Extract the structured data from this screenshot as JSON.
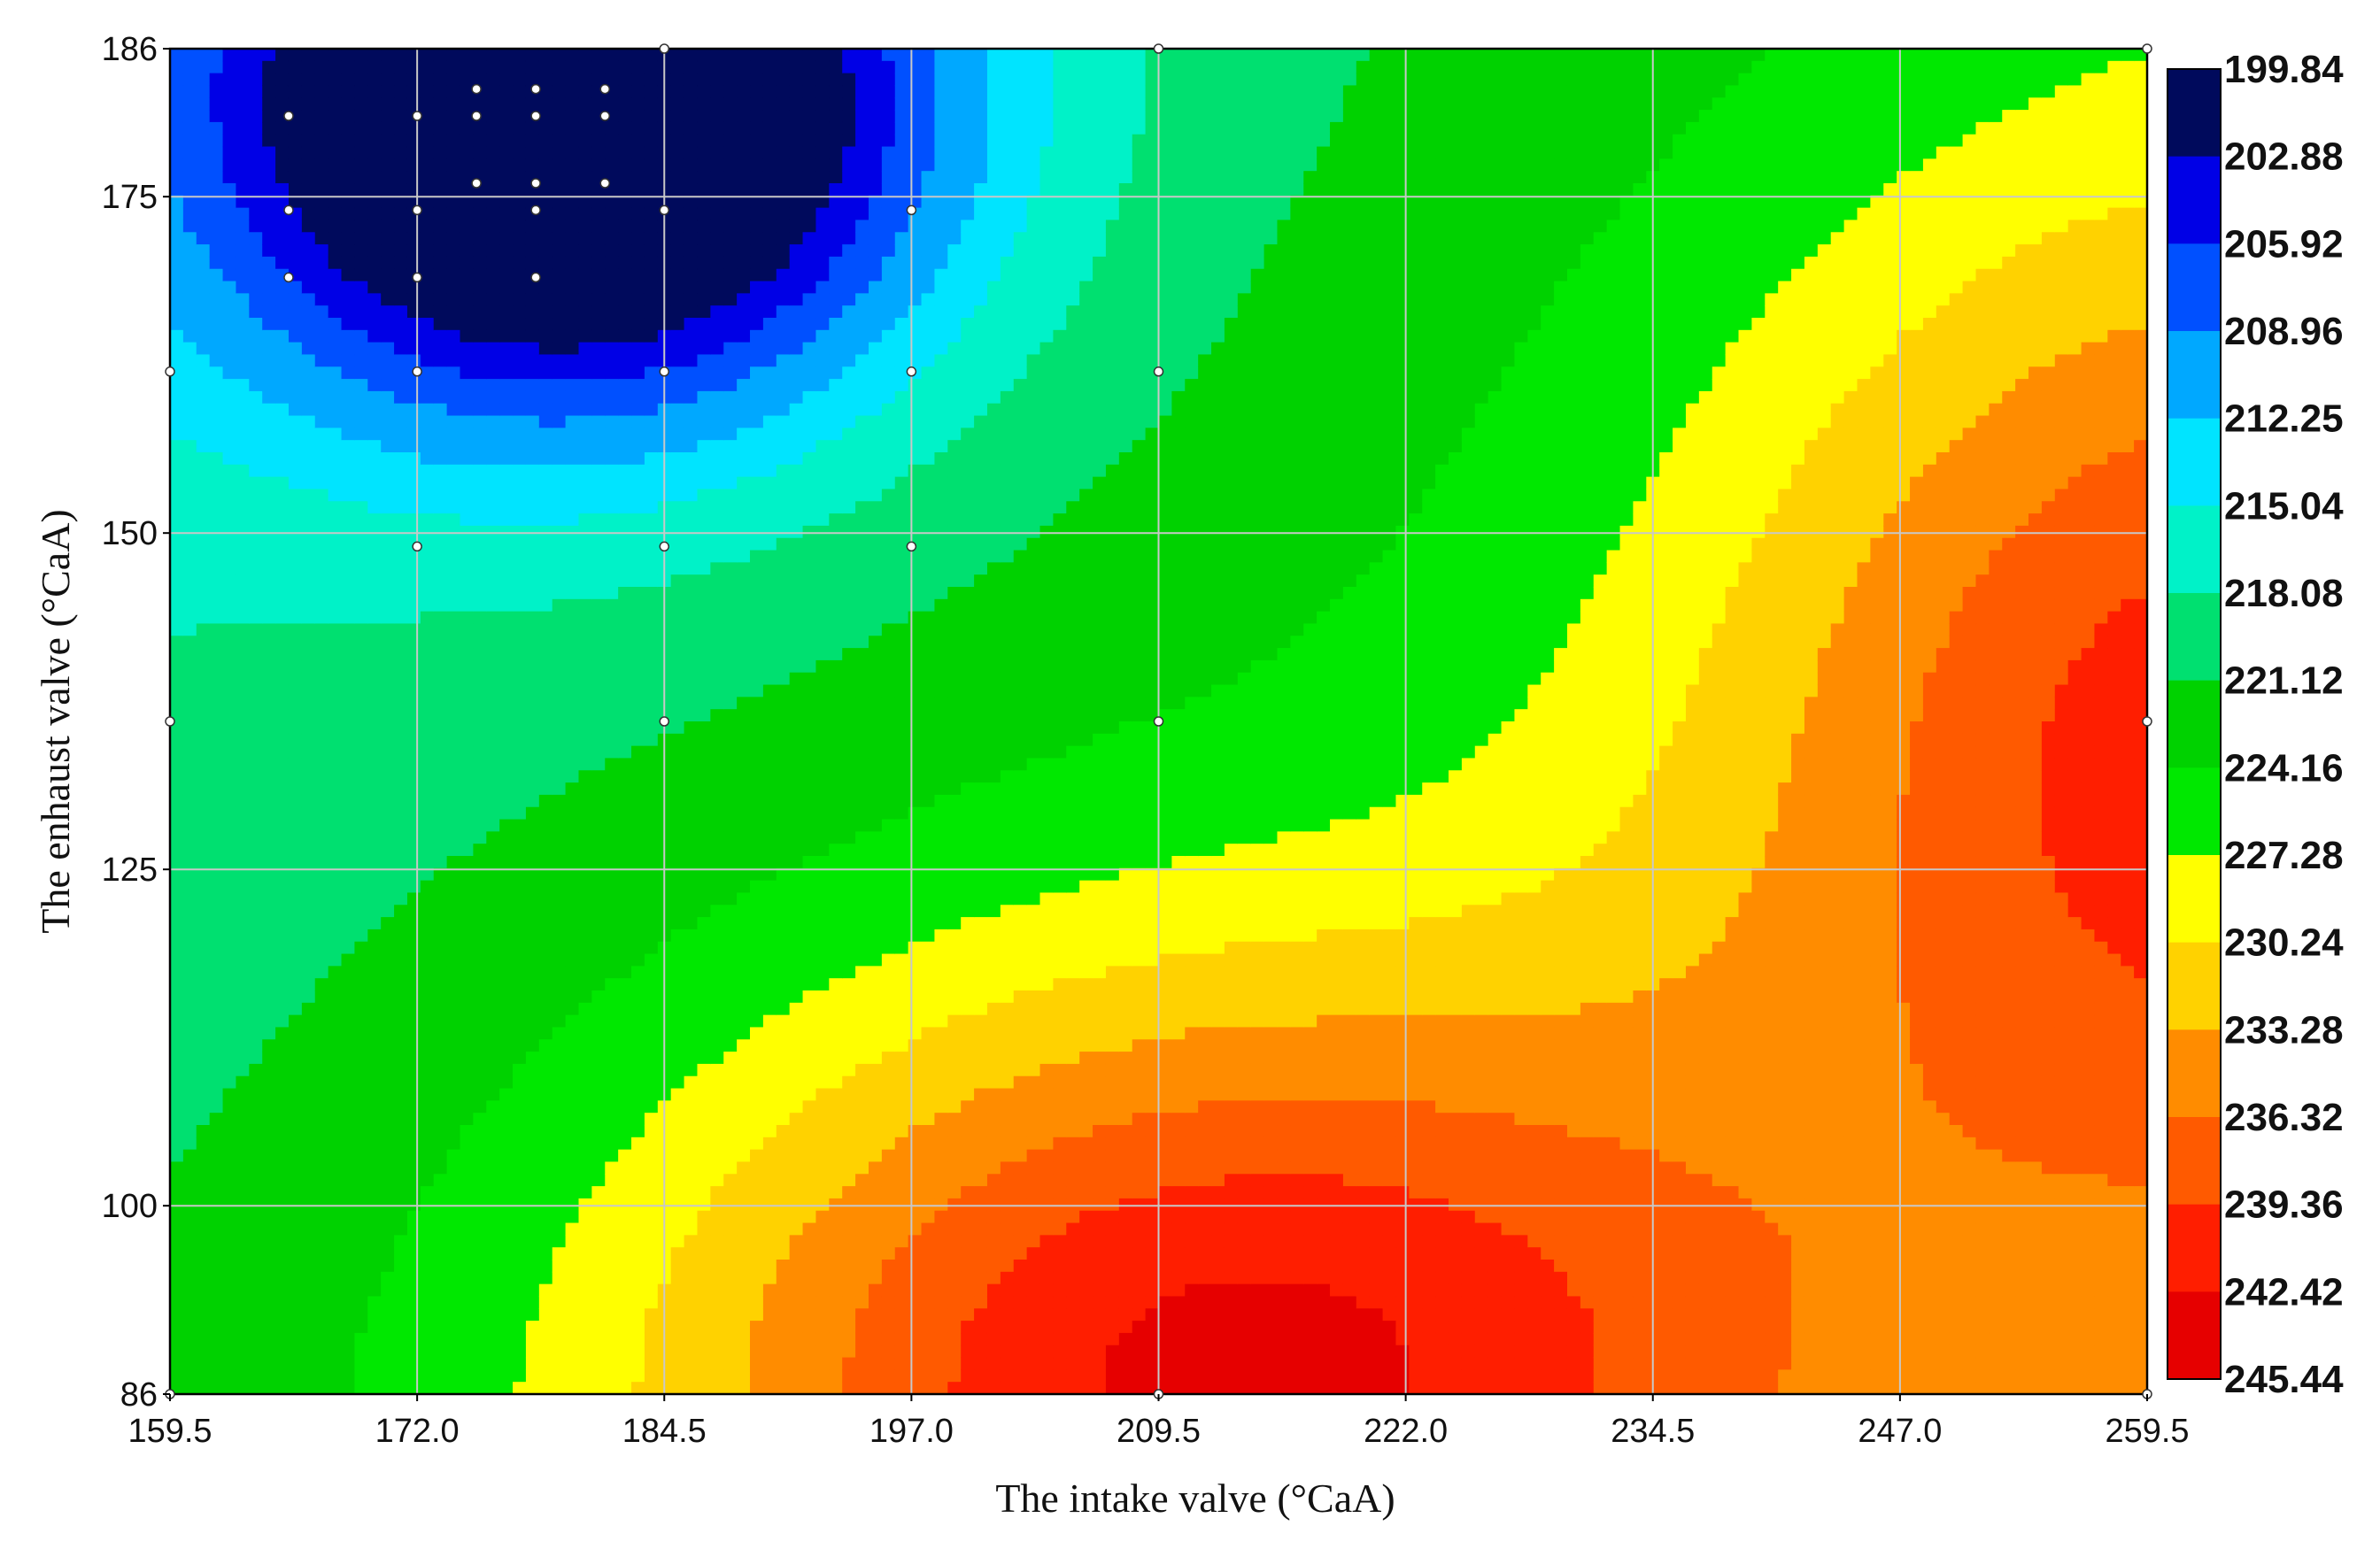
{
  "chart_data": {
    "type": "heatmap",
    "subtype": "filled-contour",
    "title": "",
    "xlabel": "The intake valve (°CaA)",
    "ylabel": "The enhaust valve (°CaA)",
    "x_ticks": [
      "159.5",
      "172.0",
      "184.5",
      "197.0",
      "209.5",
      "222.0",
      "234.5",
      "247.0",
      "259.5"
    ],
    "y_ticks": [
      "186",
      "175",
      "150",
      "125",
      "100",
      "86"
    ],
    "xlim": [
      159.5,
      259.5
    ],
    "ylim": [
      86,
      186
    ],
    "grid": true,
    "colorbar": {
      "position": "right",
      "labels": [
        "199.84",
        "202.88",
        "205.92",
        "208.96",
        "212.25",
        "215.04",
        "218.08",
        "221.12",
        "224.16",
        "227.28",
        "230.24",
        "233.28",
        "236.32",
        "239.36",
        "242.42",
        "245.44"
      ],
      "colors": [
        "#000a5c",
        "#0000e6",
        "#0050ff",
        "#00a8ff",
        "#00e4ff",
        "#00f2c8",
        "#00e070",
        "#00d200",
        "#00e800",
        "#ffff00",
        "#ffd200",
        "#ff8c00",
        "#ff5a00",
        "#ff1e00",
        "#e60000"
      ]
    },
    "levels": [
      199.84,
      202.88,
      205.92,
      208.96,
      212.25,
      215.04,
      218.08,
      221.12,
      224.16,
      227.28,
      230.24,
      233.28,
      236.32,
      239.36,
      242.42,
      245.44
    ],
    "min_region": {
      "x": 180.0,
      "y": 181,
      "value": 199.84
    },
    "max_region": {
      "x": 212.0,
      "y": 88,
      "value": 245.44
    },
    "sample_points": [
      [
        165.5,
        181
      ],
      [
        172,
        181
      ],
      [
        175,
        183
      ],
      [
        178,
        183
      ],
      [
        181.5,
        183
      ],
      [
        175,
        181
      ],
      [
        178,
        181
      ],
      [
        181.5,
        181
      ],
      [
        175,
        176
      ],
      [
        178,
        176
      ],
      [
        181.5,
        176
      ],
      [
        165.5,
        174
      ],
      [
        172,
        174
      ],
      [
        178,
        174
      ],
      [
        184.5,
        174
      ],
      [
        197,
        174
      ],
      [
        165.5,
        169
      ],
      [
        172,
        169
      ],
      [
        178,
        169
      ],
      [
        159.5,
        162
      ],
      [
        172,
        162
      ],
      [
        184.5,
        162
      ],
      [
        197,
        162
      ],
      [
        209.5,
        162
      ],
      [
        172,
        149
      ],
      [
        184.5,
        149
      ],
      [
        197,
        149
      ],
      [
        159.5,
        136
      ],
      [
        184.5,
        136
      ],
      [
        209.5,
        136
      ],
      [
        259.5,
        136
      ],
      [
        159.5,
        86
      ],
      [
        209.5,
        86
      ],
      [
        259.5,
        86
      ],
      [
        259.5,
        186
      ],
      [
        184.5,
        186
      ],
      [
        209.5,
        186
      ]
    ]
  }
}
